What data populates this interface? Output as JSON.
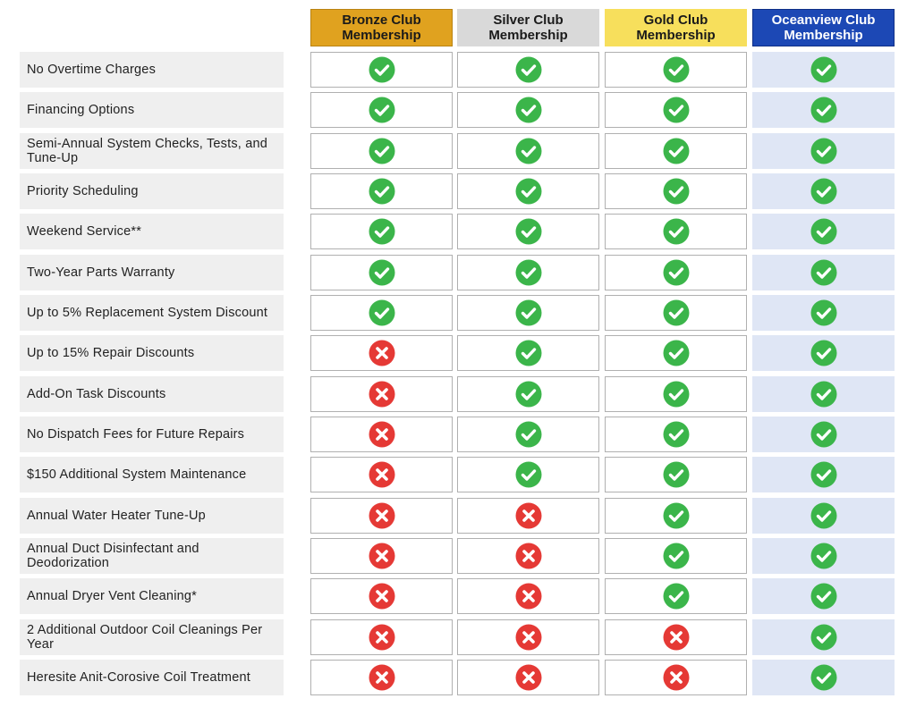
{
  "tiers": [
    {
      "label": "Bronze Club Membership"
    },
    {
      "label": "Silver Club Membership"
    },
    {
      "label": "Gold Club Membership"
    },
    {
      "label": "Oceanview Club Membership"
    }
  ],
  "features": [
    {
      "label": "No Overtime Charges",
      "included": [
        true,
        true,
        true,
        true
      ]
    },
    {
      "label": "Financing Options",
      "included": [
        true,
        true,
        true,
        true
      ]
    },
    {
      "label": "Semi-Annual System Checks, Tests, and Tune-Up",
      "included": [
        true,
        true,
        true,
        true
      ]
    },
    {
      "label": "Priority Scheduling",
      "included": [
        true,
        true,
        true,
        true
      ]
    },
    {
      "label": "Weekend Service**",
      "included": [
        true,
        true,
        true,
        true
      ]
    },
    {
      "label": "Two-Year Parts Warranty",
      "included": [
        true,
        true,
        true,
        true
      ]
    },
    {
      "label": "Up to 5% Replacement System Discount",
      "included": [
        true,
        true,
        true,
        true
      ]
    },
    {
      "label": "Up to 15% Repair Discounts",
      "included": [
        false,
        true,
        true,
        true
      ]
    },
    {
      "label": "Add-On Task Discounts",
      "included": [
        false,
        true,
        true,
        true
      ]
    },
    {
      "label": "No Dispatch Fees for Future Repairs",
      "included": [
        false,
        true,
        true,
        true
      ]
    },
    {
      "label": "$150 Additional System Maintenance",
      "included": [
        false,
        true,
        true,
        true
      ]
    },
    {
      "label": "Annual Water Heater Tune-Up",
      "included": [
        false,
        false,
        true,
        true
      ]
    },
    {
      "label": "Annual Duct Disinfectant and Deodorization",
      "included": [
        false,
        false,
        true,
        true
      ]
    },
    {
      "label": "Annual Dryer Vent Cleaning*",
      "included": [
        false,
        false,
        true,
        true
      ]
    },
    {
      "label": "2 Additional Outdoor Coil Cleanings Per Year",
      "included": [
        false,
        false,
        false,
        true
      ]
    },
    {
      "label": "Heresite Anit-Corosive Coil Treatment",
      "included": [
        false,
        false,
        false,
        true
      ]
    }
  ],
  "colors": {
    "check": "#3bb54a",
    "cross": "#e53935",
    "bronze": "#e0a21f",
    "silver": "#d9d9d9",
    "gold": "#f7df5c",
    "oceanview": "#1c48b5"
  }
}
